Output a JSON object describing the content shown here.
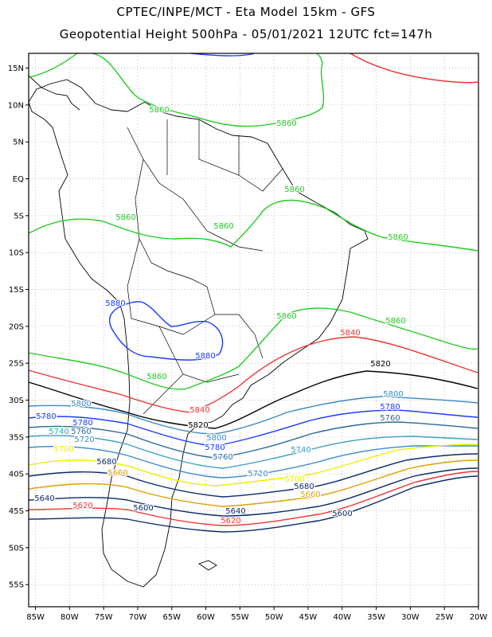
{
  "header": {
    "line1": "CPTEC/INPE/MCT -  Eta Model 15km - GFS",
    "line2": "Geopotential Height 500hPa - 05/01/2021 12UTC fct=147h"
  },
  "axes": {
    "lat_labels": [
      "15N",
      "10N",
      "5N",
      "EQ",
      "5S",
      "10S",
      "15S",
      "20S",
      "25S",
      "30S",
      "35S",
      "40S",
      "45S",
      "50S",
      "55S"
    ],
    "lat_values": [
      15,
      10,
      5,
      0,
      -5,
      -10,
      -15,
      -20,
      -25,
      -30,
      -35,
      -40,
      -45,
      -50,
      -55
    ],
    "lon_labels": [
      "85W",
      "80W",
      "75W",
      "70W",
      "65W",
      "60W",
      "55W",
      "50W",
      "45W",
      "40W",
      "35W",
      "30W",
      "25W",
      "20W"
    ],
    "lon_values": [
      -85,
      -80,
      -75,
      -70,
      -65,
      -60,
      -55,
      -50,
      -45,
      -40,
      -35,
      -30,
      -25,
      -20
    ],
    "lon_range": [
      -86,
      -20
    ],
    "lat_range": [
      -58,
      17
    ],
    "grid": "dotted"
  },
  "colors": {
    "5880": "#1a3cff",
    "5860": "#22cc22",
    "5840": "#ee3333",
    "5820": "#000000",
    "5800": "#3a88c8",
    "5780": "#1a3cff",
    "5760": "#2a6a9a",
    "5740": "#3aa0c0",
    "5720": "#3a88c8",
    "5700": "#eeee00",
    "5680": "#0a2a6a",
    "5660": "#e0a000",
    "5640": "#0a2a6a",
    "5620": "#ee3333",
    "5600": "#0a2a6a",
    "land": "#000000"
  },
  "contour_labels": [
    {
      "text": "5860",
      "level": "5860"
    },
    {
      "text": "5860",
      "level": "5860"
    },
    {
      "text": "5860",
      "level": "5860"
    },
    {
      "text": "5860",
      "level": "5860"
    },
    {
      "text": "5860",
      "level": "5860"
    },
    {
      "text": "5860",
      "level": "5860"
    },
    {
      "text": "5860",
      "level": "5860"
    },
    {
      "text": "5860",
      "level": "5860"
    },
    {
      "text": "5860",
      "level": "5860"
    },
    {
      "text": "5880",
      "level": "5880"
    },
    {
      "text": "5880",
      "level": "5880"
    },
    {
      "text": "5840",
      "level": "5840"
    },
    {
      "text": "5840",
      "level": "5840"
    },
    {
      "text": "5820",
      "level": "5820"
    },
    {
      "text": "5820",
      "level": "5820"
    },
    {
      "text": "5800",
      "level": "5800"
    },
    {
      "text": "5800",
      "level": "5800"
    },
    {
      "text": "5800",
      "level": "5800"
    },
    {
      "text": "5780",
      "level": "5780"
    },
    {
      "text": "5780",
      "level": "5780"
    },
    {
      "text": "5780",
      "level": "5780"
    },
    {
      "text": "5780",
      "level": "5780"
    },
    {
      "text": "5760",
      "level": "5760"
    },
    {
      "text": "5760",
      "level": "5760"
    },
    {
      "text": "5760",
      "level": "5760"
    },
    {
      "text": "5740",
      "level": "5740"
    },
    {
      "text": "5740",
      "level": "5740"
    },
    {
      "text": "5720",
      "level": "5720"
    },
    {
      "text": "5720",
      "level": "5720"
    },
    {
      "text": "5700",
      "level": "5700"
    },
    {
      "text": "5700",
      "level": "5700"
    },
    {
      "text": "5680",
      "level": "5680"
    },
    {
      "text": "5680",
      "level": "5680"
    },
    {
      "text": "5660",
      "level": "5660"
    },
    {
      "text": "5660",
      "level": "5660"
    },
    {
      "text": "5640",
      "level": "5640"
    },
    {
      "text": "5640",
      "level": "5640"
    },
    {
      "text": "5620",
      "level": "5620"
    },
    {
      "text": "5620",
      "level": "5620"
    },
    {
      "text": "5600",
      "level": "5600"
    },
    {
      "text": "5600",
      "level": "5600"
    }
  ]
}
